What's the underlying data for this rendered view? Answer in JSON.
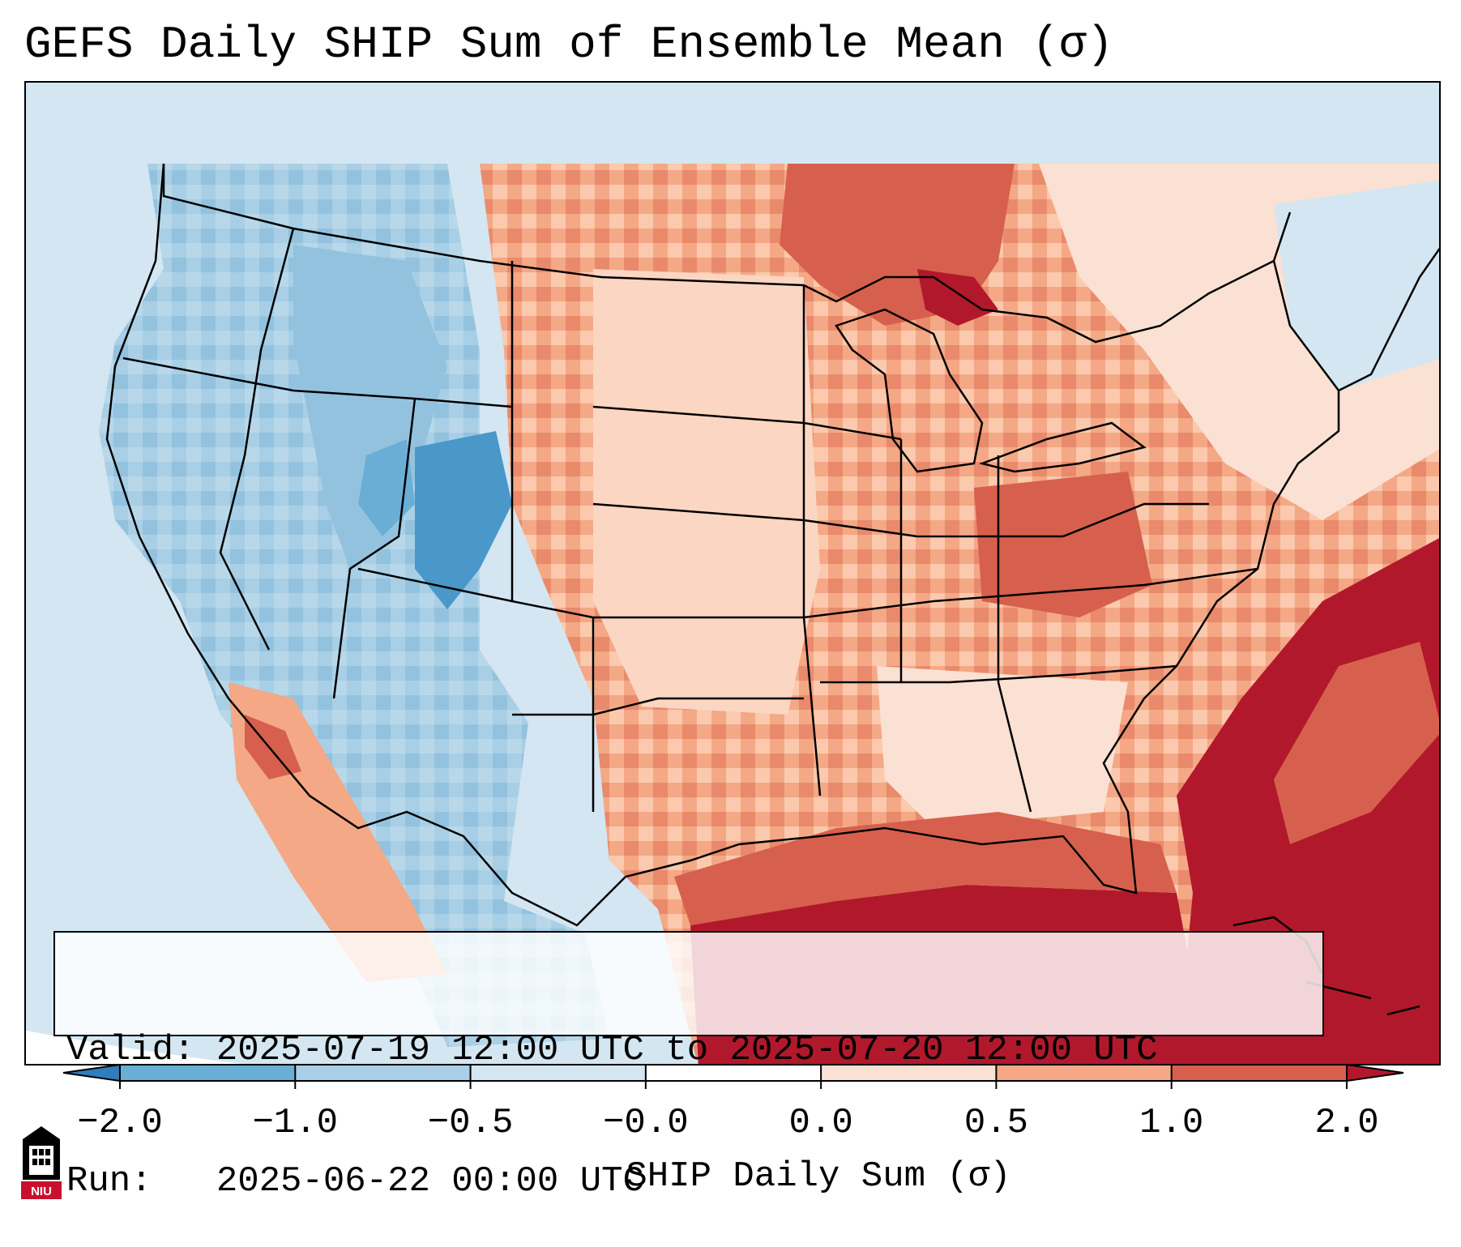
{
  "title": "GEFS Daily SHIP Sum of Ensemble Mean (σ)",
  "info": {
    "valid_label": "Valid:",
    "valid_value": "2025-07-19 12:00 UTC to 2025-07-20 12:00 UTC",
    "run_label": "Run:",
    "run_value": "2025-06-22 00:00 UTC"
  },
  "colorbar": {
    "label": "SHIP Daily Sum (σ)",
    "ticks": [
      "−2.0",
      "−1.0",
      "−0.5",
      "−0.0",
      "0.0",
      "0.5",
      "1.0",
      "2.0"
    ],
    "colors": [
      "#2f7dbb",
      "#6aaed6",
      "#a8cfe5",
      "#d4e6f1",
      "#fbe1d3",
      "#f4a885",
      "#d6604d",
      "#b2182b"
    ],
    "extend": "both"
  },
  "logo": {
    "text": "NIU",
    "name": "niu-logo"
  }
}
